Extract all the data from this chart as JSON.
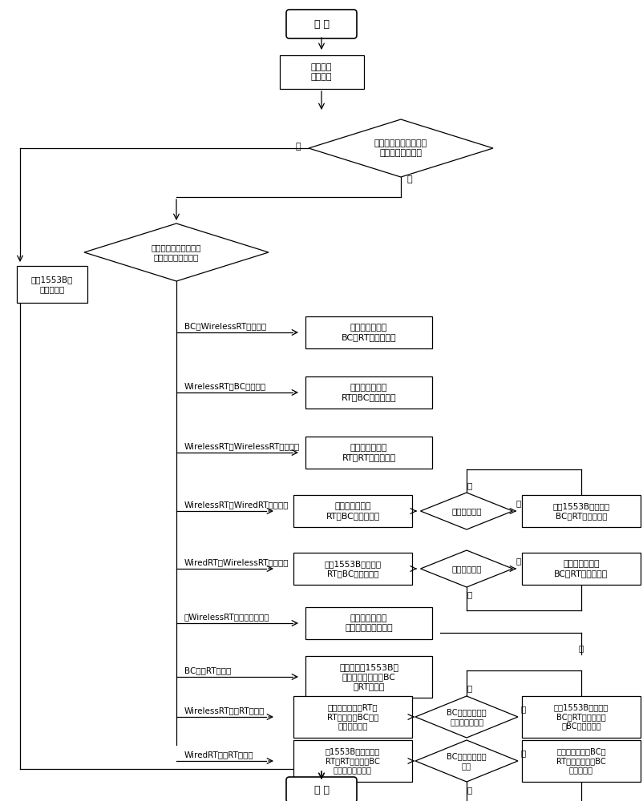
{
  "bg_color": "#ffffff",
  "s": {
    "start": "开 始",
    "query": "查询连接\n故障列表",
    "d1": "发送或接收终端是否存\n在于连接故障列表",
    "use1553": "使用1553B总\n线传输消息",
    "d2": "判断发送端还是接收端\n发生故障与消息类型",
    "r1_lbl": "BC至WirelessRT数据传输",
    "r1_box": "在无线域内执行\nBC至RT的数据传输",
    "r2_lbl": "WirelessRT至BC数据传输",
    "r2_box": "在无线域内执行\nRT至BC的数据传输",
    "r3_lbl": "WirelessRT至WirelessRT数据传输",
    "r3_box": "在无线域内执行\nRT至RT的数据传输",
    "r4_lbl": "WirelessRT至WiredRT数据传输",
    "r4_box": "在无线域内执行\nRT至BC的数据传输",
    "r4_dia": "数据传输失败",
    "r4_right": "使用1553B总线执行\nBC至RT的数据传输",
    "r5_lbl": "WiredRT至WirelessRT数据传输",
    "r5_box": "使用1553B总线执行\nRT至BC的数据传输",
    "r5_dia": "数据传输失败",
    "r5_right": "在无线域内执行\nBC至RT的数据传输",
    "r6_lbl": "对WirelessRT的方式指令传输",
    "r6_box": "在无线域内执行\n方式指令传输的传输",
    "r7_lbl": "BC向各RT的广播",
    "r7_box": "在无线域和1553B总\n线中同时执行方式BC\n至RT的广播",
    "r8_lbl": "WirelessRT向各RT的广播",
    "r8_box": "在无线域内执行RT至\nRT的广播；BC侦听\n缓存广播内容",
    "r8_dia": "BC未侦听或者侦\n听到的数据错误",
    "r8_right": "使用1553B总线执行\nBC至RT的广播，广\n播BC的缓存内容",
    "r9_lbl": "WiredRT向各RT的广播",
    "r9_box": "在1553B总线中执行\nRT至RT的广播；BC\n侦听缓存广播内容",
    "r9_dia": "BC接收到的数据\n错误",
    "r9_right": "在无线域内执行BC至\nRT的广播，广播BC\n的缓存内容",
    "end": "结 束",
    "yes": "是",
    "no": "否"
  }
}
